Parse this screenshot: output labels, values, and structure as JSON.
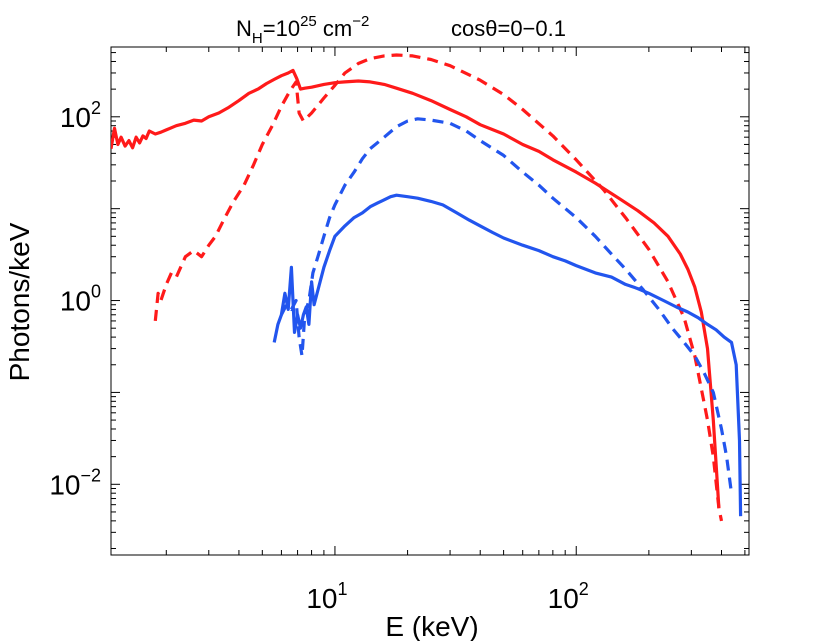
{
  "chart_data": {
    "type": "line",
    "title_parts": {
      "nh_base": "N",
      "nh_sub": "H",
      "nh_value": "=10",
      "nh_exp": "25",
      "nh_unit": " cm",
      "nh_unit_exp": "−2",
      "angle": "cosθ=0−0.1"
    },
    "xlabel": "E (keV)",
    "ylabel": "Photons/keV",
    "xscale": "log",
    "yscale": "log",
    "xlim": [
      1.18,
      520
    ],
    "ylim": [
      0.0017,
      575
    ],
    "x_ticks": [
      {
        "value": 10,
        "base": "10",
        "exp": "1"
      },
      {
        "value": 100,
        "base": "10",
        "exp": "2"
      }
    ],
    "y_ticks": [
      {
        "value": 0.01,
        "base": "10",
        "exp": "−2"
      },
      {
        "value": 1,
        "base": "10",
        "exp": "0"
      },
      {
        "value": 100,
        "base": "10",
        "exp": "2"
      }
    ],
    "series": [
      {
        "name": "red-solid",
        "color": "#ff1a1a",
        "dash": "solid",
        "x": [
          1.18,
          1.22,
          1.26,
          1.3,
          1.35,
          1.4,
          1.45,
          1.5,
          1.55,
          1.6,
          1.65,
          1.7,
          1.8,
          1.9,
          2.0,
          2.2,
          2.4,
          2.6,
          2.8,
          3.0,
          3.3,
          3.6,
          4.0,
          4.4,
          4.8,
          5.2,
          5.6,
          6.0,
          6.4,
          6.7,
          6.95,
          7.2,
          7.5,
          8.0,
          9.0,
          10.0,
          11.0,
          12.5,
          14.0,
          16.0,
          18.0,
          21.0,
          25.0,
          30.0,
          35.0,
          40.0,
          50.0,
          60.0,
          70.0,
          80.0,
          100.0,
          120.0,
          150.0,
          180.0,
          210.0,
          240.0,
          270.0,
          290.0,
          310.0,
          330.0,
          350.0,
          370.0,
          390.0
        ],
        "y": [
          45,
          75,
          50,
          60,
          48,
          55,
          46,
          60,
          52,
          62,
          58,
          70,
          65,
          68,
          72,
          80,
          85,
          92,
          90,
          100,
          110,
          125,
          150,
          180,
          200,
          230,
          255,
          280,
          300,
          320,
          260,
          200,
          205,
          210,
          225,
          235,
          240,
          245,
          240,
          225,
          205,
          180,
          150,
          120,
          100,
          82,
          65,
          50,
          42,
          34,
          25,
          19,
          13,
          9.5,
          7.0,
          5.0,
          3.2,
          2.2,
          1.4,
          0.75,
          0.3,
          0.05,
          0.0055
        ]
      },
      {
        "name": "red-dashed",
        "color": "#ff1a1a",
        "dash": "dashed",
        "x": [
          1.8,
          1.85,
          1.9,
          2.0,
          2.1,
          2.2,
          2.4,
          2.6,
          2.8,
          3.0,
          3.2,
          3.5,
          3.8,
          4.2,
          4.6,
          5.0,
          5.5,
          6.0,
          6.5,
          6.9,
          7.1,
          7.4,
          8.0,
          9.0,
          10.0,
          11.0,
          12.5,
          14.0,
          16.0,
          18.0,
          21.0,
          25.0,
          30.0,
          40.0,
          50.0,
          60.0,
          80.0,
          100.0,
          130.0,
          160.0,
          200.0,
          240.0,
          280.0,
          310.0,
          330.0,
          350.0,
          370.0,
          390.0,
          400.0
        ],
        "y": [
          0.6,
          1.2,
          1.0,
          1.5,
          2.0,
          1.8,
          3.0,
          3.5,
          3.0,
          4.0,
          5.0,
          8.0,
          12.0,
          18.0,
          30.0,
          50.0,
          80.0,
          130.0,
          190.0,
          240.0,
          110.0,
          90.0,
          110.0,
          160.0,
          220.0,
          300.0,
          380.0,
          430.0,
          460.0,
          470.0,
          460.0,
          420.0,
          360.0,
          250.0,
          175.0,
          120.0,
          62.0,
          34.0,
          16.0,
          8.0,
          3.6,
          1.6,
          0.65,
          0.25,
          0.11,
          0.05,
          0.02,
          0.0055,
          0.004
        ]
      },
      {
        "name": "blue-solid",
        "color": "#2255ee",
        "dash": "solid",
        "x": [
          5.6,
          5.8,
          6.0,
          6.2,
          6.4,
          6.6,
          6.8,
          7.0,
          7.2,
          7.4,
          7.6,
          7.8,
          8.0,
          8.2,
          8.5,
          9.0,
          9.5,
          10.0,
          11.0,
          12.0,
          13.0,
          14.0,
          15.0,
          16.0,
          17.0,
          18.0,
          20.0,
          22.0,
          25.0,
          28.0,
          32.0,
          36.0,
          40.0,
          45.0,
          50.0,
          60.0,
          70.0,
          80.0,
          90.0,
          100.0,
          120.0,
          140.0,
          160.0,
          180.0,
          200.0,
          230.0,
          260.0,
          290.0,
          320.0,
          350.0,
          380.0,
          410.0,
          440.0,
          460.0,
          475.0,
          480.0
        ],
        "y": [
          0.35,
          0.55,
          0.7,
          1.2,
          0.8,
          2.3,
          0.45,
          0.7,
          0.5,
          0.7,
          0.85,
          0.55,
          1.6,
          0.9,
          1.3,
          2.3,
          3.5,
          5.0,
          6.5,
          8.0,
          9.0,
          10.5,
          11.5,
          12.5,
          13.5,
          14.0,
          13.5,
          13.0,
          12.0,
          11.0,
          9.0,
          7.5,
          6.5,
          5.5,
          4.8,
          4.0,
          3.5,
          3.0,
          2.7,
          2.4,
          2.0,
          1.8,
          1.5,
          1.35,
          1.2,
          1.0,
          0.85,
          0.75,
          0.65,
          0.55,
          0.48,
          0.4,
          0.35,
          0.2,
          0.03,
          0.0045
        ]
      },
      {
        "name": "blue-dashed",
        "color": "#2255ee",
        "dash": "dashed",
        "x": [
          6.0,
          6.3,
          6.6,
          6.9,
          7.1,
          7.3,
          7.5,
          7.8,
          8.1,
          8.5,
          9.0,
          9.5,
          10.0,
          11.0,
          12.0,
          13.0,
          14.0,
          16.0,
          18.0,
          20.0,
          22.0,
          25.0,
          30.0,
          35.0,
          40.0,
          50.0,
          60.0,
          70.0,
          80.0,
          100.0,
          120.0,
          140.0,
          160.0,
          190.0,
          220.0,
          250.0,
          280.0,
          310.0,
          340.0,
          370.0,
          400.0,
          420.0,
          440.0
        ],
        "y": [
          0.7,
          0.9,
          0.8,
          1.0,
          0.4,
          0.25,
          0.7,
          1.0,
          2.0,
          3.0,
          5.0,
          8.0,
          11.0,
          18.0,
          25.0,
          35.0,
          45.0,
          60.0,
          78.0,
          90.0,
          95.0,
          92.0,
          85.0,
          70.0,
          55.0,
          38.0,
          25.0,
          18.0,
          13.0,
          8.0,
          5.0,
          3.2,
          2.2,
          1.3,
          0.8,
          0.5,
          0.35,
          0.25,
          0.16,
          0.1,
          0.04,
          0.02,
          0.008
        ]
      }
    ]
  }
}
